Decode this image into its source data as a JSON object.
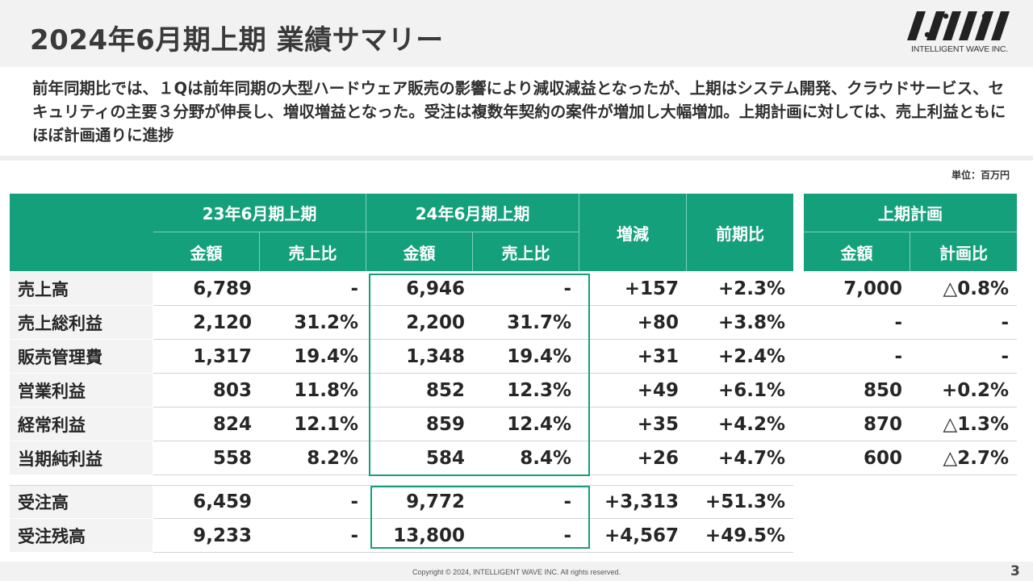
{
  "title": "2024年6月期上期 業績サマリー",
  "logo": {
    "subtitle": "INTELLIGENT WAVE INC."
  },
  "summary": "前年同期比では、１Qは前年同期の大型ハードウェア販売の影響により減収減益となったが、上期はシステム開発、クラウドサービス、セキュリティの主要３分野が伸長し、増収増益となった。受注は複数年契約の案件が増加し大幅増加。上期計画に対しては、売上利益ともにほぼ計画通りに進捗",
  "unit": "単位：百万円",
  "colors": {
    "accent": "#14a07b",
    "label_bg": "#f3f3f3"
  },
  "table": {
    "groups": {
      "fy23": "23年6月期上期",
      "fy24": "24年6月期上期",
      "change": "増減",
      "yoy": "前期比",
      "plan": "上期計画"
    },
    "subheaders": {
      "amount": "金額",
      "ratio": "売上比",
      "plan_ratio": "計画比"
    },
    "rows": [
      {
        "label": "売上高",
        "fy23_amount": "6,789",
        "fy23_ratio": "-",
        "fy24_amount": "6,946",
        "fy24_ratio": "-",
        "change": "+157",
        "yoy": "+2.3%",
        "plan_amount": "7,000",
        "plan_ratio": "△0.8%"
      },
      {
        "label": "売上総利益",
        "fy23_amount": "2,120",
        "fy23_ratio": "31.2%",
        "fy24_amount": "2,200",
        "fy24_ratio": "31.7%",
        "change": "+80",
        "yoy": "+3.8%",
        "plan_amount": "-",
        "plan_ratio": "-"
      },
      {
        "label": "販売管理費",
        "fy23_amount": "1,317",
        "fy23_ratio": "19.4%",
        "fy24_amount": "1,348",
        "fy24_ratio": "19.4%",
        "change": "+31",
        "yoy": "+2.4%",
        "plan_amount": "-",
        "plan_ratio": "-"
      },
      {
        "label": "営業利益",
        "fy23_amount": "803",
        "fy23_ratio": "11.8%",
        "fy24_amount": "852",
        "fy24_ratio": "12.3%",
        "change": "+49",
        "yoy": "+6.1%",
        "plan_amount": "850",
        "plan_ratio": "+0.2%"
      },
      {
        "label": "経常利益",
        "fy23_amount": "824",
        "fy23_ratio": "12.1%",
        "fy24_amount": "859",
        "fy24_ratio": "12.4%",
        "change": "+35",
        "yoy": "+4.2%",
        "plan_amount": "870",
        "plan_ratio": "△1.3%"
      },
      {
        "label": "当期純利益",
        "fy23_amount": "558",
        "fy23_ratio": "8.2%",
        "fy24_amount": "584",
        "fy24_ratio": "8.4%",
        "change": "+26",
        "yoy": "+4.7%",
        "plan_amount": "600",
        "plan_ratio": "△2.7%"
      }
    ],
    "order_rows": [
      {
        "label": "受注高",
        "fy23_amount": "6,459",
        "fy23_ratio": "-",
        "fy24_amount": "9,772",
        "fy24_ratio": "-",
        "change": "+3,313",
        "yoy": "+51.3%"
      },
      {
        "label": "受注残高",
        "fy23_amount": "9,233",
        "fy23_ratio": "-",
        "fy24_amount": "13,800",
        "fy24_ratio": "-",
        "change": "+4,567",
        "yoy": "+49.5%"
      }
    ]
  },
  "footer": {
    "copyright": "Copyright © 2024, INTELLIGENT WAVE INC. All rights reserved.",
    "page": "3"
  }
}
